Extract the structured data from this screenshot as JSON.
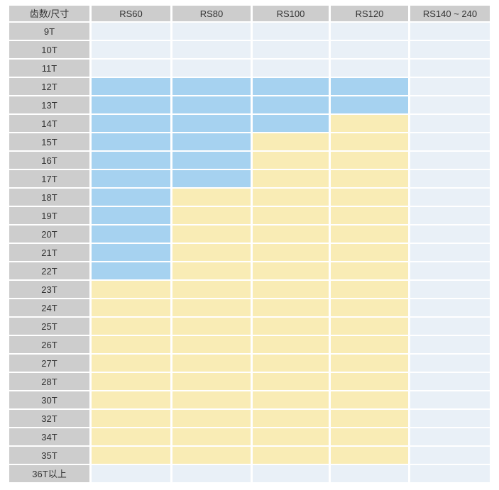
{
  "chart_data": {
    "type": "heatmap",
    "title": "",
    "row_header": "齿数/尺寸",
    "columns": [
      "RS60",
      "RS80",
      "RS100",
      "RS120",
      "RS140 ~ 240"
    ],
    "rows": [
      "9T",
      "10T",
      "11T",
      "12T",
      "13T",
      "14T",
      "15T",
      "16T",
      "17T",
      "18T",
      "19T",
      "20T",
      "21T",
      "22T",
      "23T",
      "24T",
      "25T",
      "26T",
      "27T",
      "28T",
      "30T",
      "32T",
      "34T",
      "35T",
      "36T以上"
    ],
    "values": [
      [
        "none",
        "none",
        "none",
        "none",
        "none"
      ],
      [
        "none",
        "none",
        "none",
        "none",
        "none"
      ],
      [
        "none",
        "none",
        "none",
        "none",
        "none"
      ],
      [
        "blue",
        "blue",
        "blue",
        "blue",
        "none"
      ],
      [
        "blue",
        "blue",
        "blue",
        "blue",
        "none"
      ],
      [
        "blue",
        "blue",
        "blue",
        "yellow",
        "none"
      ],
      [
        "blue",
        "blue",
        "yellow",
        "yellow",
        "none"
      ],
      [
        "blue",
        "blue",
        "yellow",
        "yellow",
        "none"
      ],
      [
        "blue",
        "blue",
        "yellow",
        "yellow",
        "none"
      ],
      [
        "blue",
        "yellow",
        "yellow",
        "yellow",
        "none"
      ],
      [
        "blue",
        "yellow",
        "yellow",
        "yellow",
        "none"
      ],
      [
        "blue",
        "yellow",
        "yellow",
        "yellow",
        "none"
      ],
      [
        "blue",
        "yellow",
        "yellow",
        "yellow",
        "none"
      ],
      [
        "blue",
        "yellow",
        "yellow",
        "yellow",
        "none"
      ],
      [
        "yellow",
        "yellow",
        "yellow",
        "yellow",
        "none"
      ],
      [
        "yellow",
        "yellow",
        "yellow",
        "yellow",
        "none"
      ],
      [
        "yellow",
        "yellow",
        "yellow",
        "yellow",
        "none"
      ],
      [
        "yellow",
        "yellow",
        "yellow",
        "yellow",
        "none"
      ],
      [
        "yellow",
        "yellow",
        "yellow",
        "yellow",
        "none"
      ],
      [
        "yellow",
        "yellow",
        "yellow",
        "yellow",
        "none"
      ],
      [
        "yellow",
        "yellow",
        "yellow",
        "yellow",
        "none"
      ],
      [
        "yellow",
        "yellow",
        "yellow",
        "yellow",
        "none"
      ],
      [
        "yellow",
        "yellow",
        "yellow",
        "yellow",
        "none"
      ],
      [
        "yellow",
        "yellow",
        "yellow",
        "yellow",
        "none"
      ],
      [
        "none",
        "none",
        "none",
        "none",
        "none"
      ]
    ],
    "value_colors": {
      "blue": "#a6d2f0",
      "yellow": "#f9ecb5",
      "none": "#e9f0f7"
    },
    "layout": {
      "header_bg": "#cdcdcd",
      "text_color": "#333333",
      "page_bg": "#ffffff",
      "grid_gap_color": "#ffffff",
      "legend": "none"
    }
  }
}
